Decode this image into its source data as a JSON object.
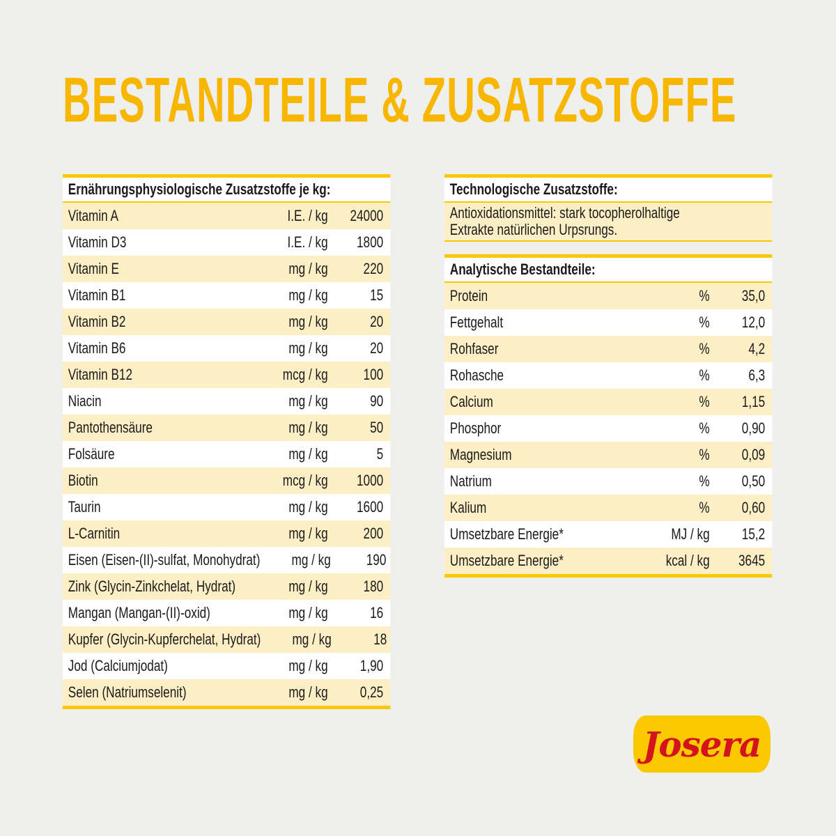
{
  "title": "BESTANDTEILE & ZUSATZSTOFFE",
  "left_table": {
    "header": "Ernährungsphysiologische Zusatzstoffe je kg:",
    "rows": [
      {
        "name": "Vitamin A",
        "unit": "I.E. / kg",
        "value": "24000"
      },
      {
        "name": "Vitamin D3",
        "unit": "I.E. / kg",
        "value": "1800"
      },
      {
        "name": "Vitamin E",
        "unit": "mg / kg",
        "value": "220"
      },
      {
        "name": "Vitamin B1",
        "unit": "mg / kg",
        "value": "15"
      },
      {
        "name": "Vitamin B2",
        "unit": "mg / kg",
        "value": "20"
      },
      {
        "name": "Vitamin B6",
        "unit": "mg / kg",
        "value": "20"
      },
      {
        "name": "Vitamin B12",
        "unit": "mcg / kg",
        "value": "100"
      },
      {
        "name": "Niacin",
        "unit": "mg / kg",
        "value": "90"
      },
      {
        "name": "Pantothensäure",
        "unit": "mg / kg",
        "value": "50"
      },
      {
        "name": "Folsäure",
        "unit": "mg / kg",
        "value": "5"
      },
      {
        "name": "Biotin",
        "unit": "mcg / kg",
        "value": "1000"
      },
      {
        "name": "Taurin",
        "unit": "mg / kg",
        "value": "1600"
      },
      {
        "name": "L-Carnitin",
        "unit": "mg / kg",
        "value": "200"
      },
      {
        "name": "Eisen (Eisen-(II)-sulfat, Monohydrat)",
        "unit": "mg / kg",
        "value": "190"
      },
      {
        "name": "Zink (Glycin-Zinkchelat, Hydrat)",
        "unit": "mg / kg",
        "value": "180"
      },
      {
        "name": "Mangan (Mangan-(II)-oxid)",
        "unit": "mg / kg",
        "value": "16"
      },
      {
        "name": "Kupfer (Glycin-Kupferchelat, Hydrat)",
        "unit": "mg / kg",
        "value": "18"
      },
      {
        "name": "Jod (Calciumjodat)",
        "unit": "mg / kg",
        "value": "1,90"
      },
      {
        "name": "Selen (Natriumselenit)",
        "unit": "mg / kg",
        "value": "0,25"
      }
    ]
  },
  "tech_table": {
    "header": "Technologische Zusatzstoffe:",
    "line1": "Antioxidationsmittel: stark tocopherolhaltige",
    "line2": "Extrakte natürlichen Urpsrungs."
  },
  "analytic_table": {
    "header": "Analytische Bestandteile:",
    "rows": [
      {
        "name": "Protein",
        "unit": "%",
        "value": "35,0"
      },
      {
        "name": "Fettgehalt",
        "unit": "%",
        "value": "12,0"
      },
      {
        "name": "Rohfaser",
        "unit": "%",
        "value": "4,2"
      },
      {
        "name": "Rohasche",
        "unit": "%",
        "value": "6,3"
      },
      {
        "name": "Calcium",
        "unit": "%",
        "value": "1,15"
      },
      {
        "name": "Phosphor",
        "unit": "%",
        "value": "0,90"
      },
      {
        "name": "Magnesium",
        "unit": "%",
        "value": "0,09"
      },
      {
        "name": "Natrium",
        "unit": "%",
        "value": "0,50"
      },
      {
        "name": "Kalium",
        "unit": "%",
        "value": "0,60"
      },
      {
        "name": "Umsetzbare Energie*",
        "unit": "MJ / kg",
        "value": "15,2"
      },
      {
        "name": "Umsetzbare Energie*",
        "unit": "kcal / kg",
        "value": "3645"
      }
    ]
  },
  "logo": {
    "text": "Josera"
  },
  "colors": {
    "accent": "#fcc800",
    "row_alt": "#fdefc5",
    "title": "#f7b600",
    "logo_text": "#d4141c"
  }
}
